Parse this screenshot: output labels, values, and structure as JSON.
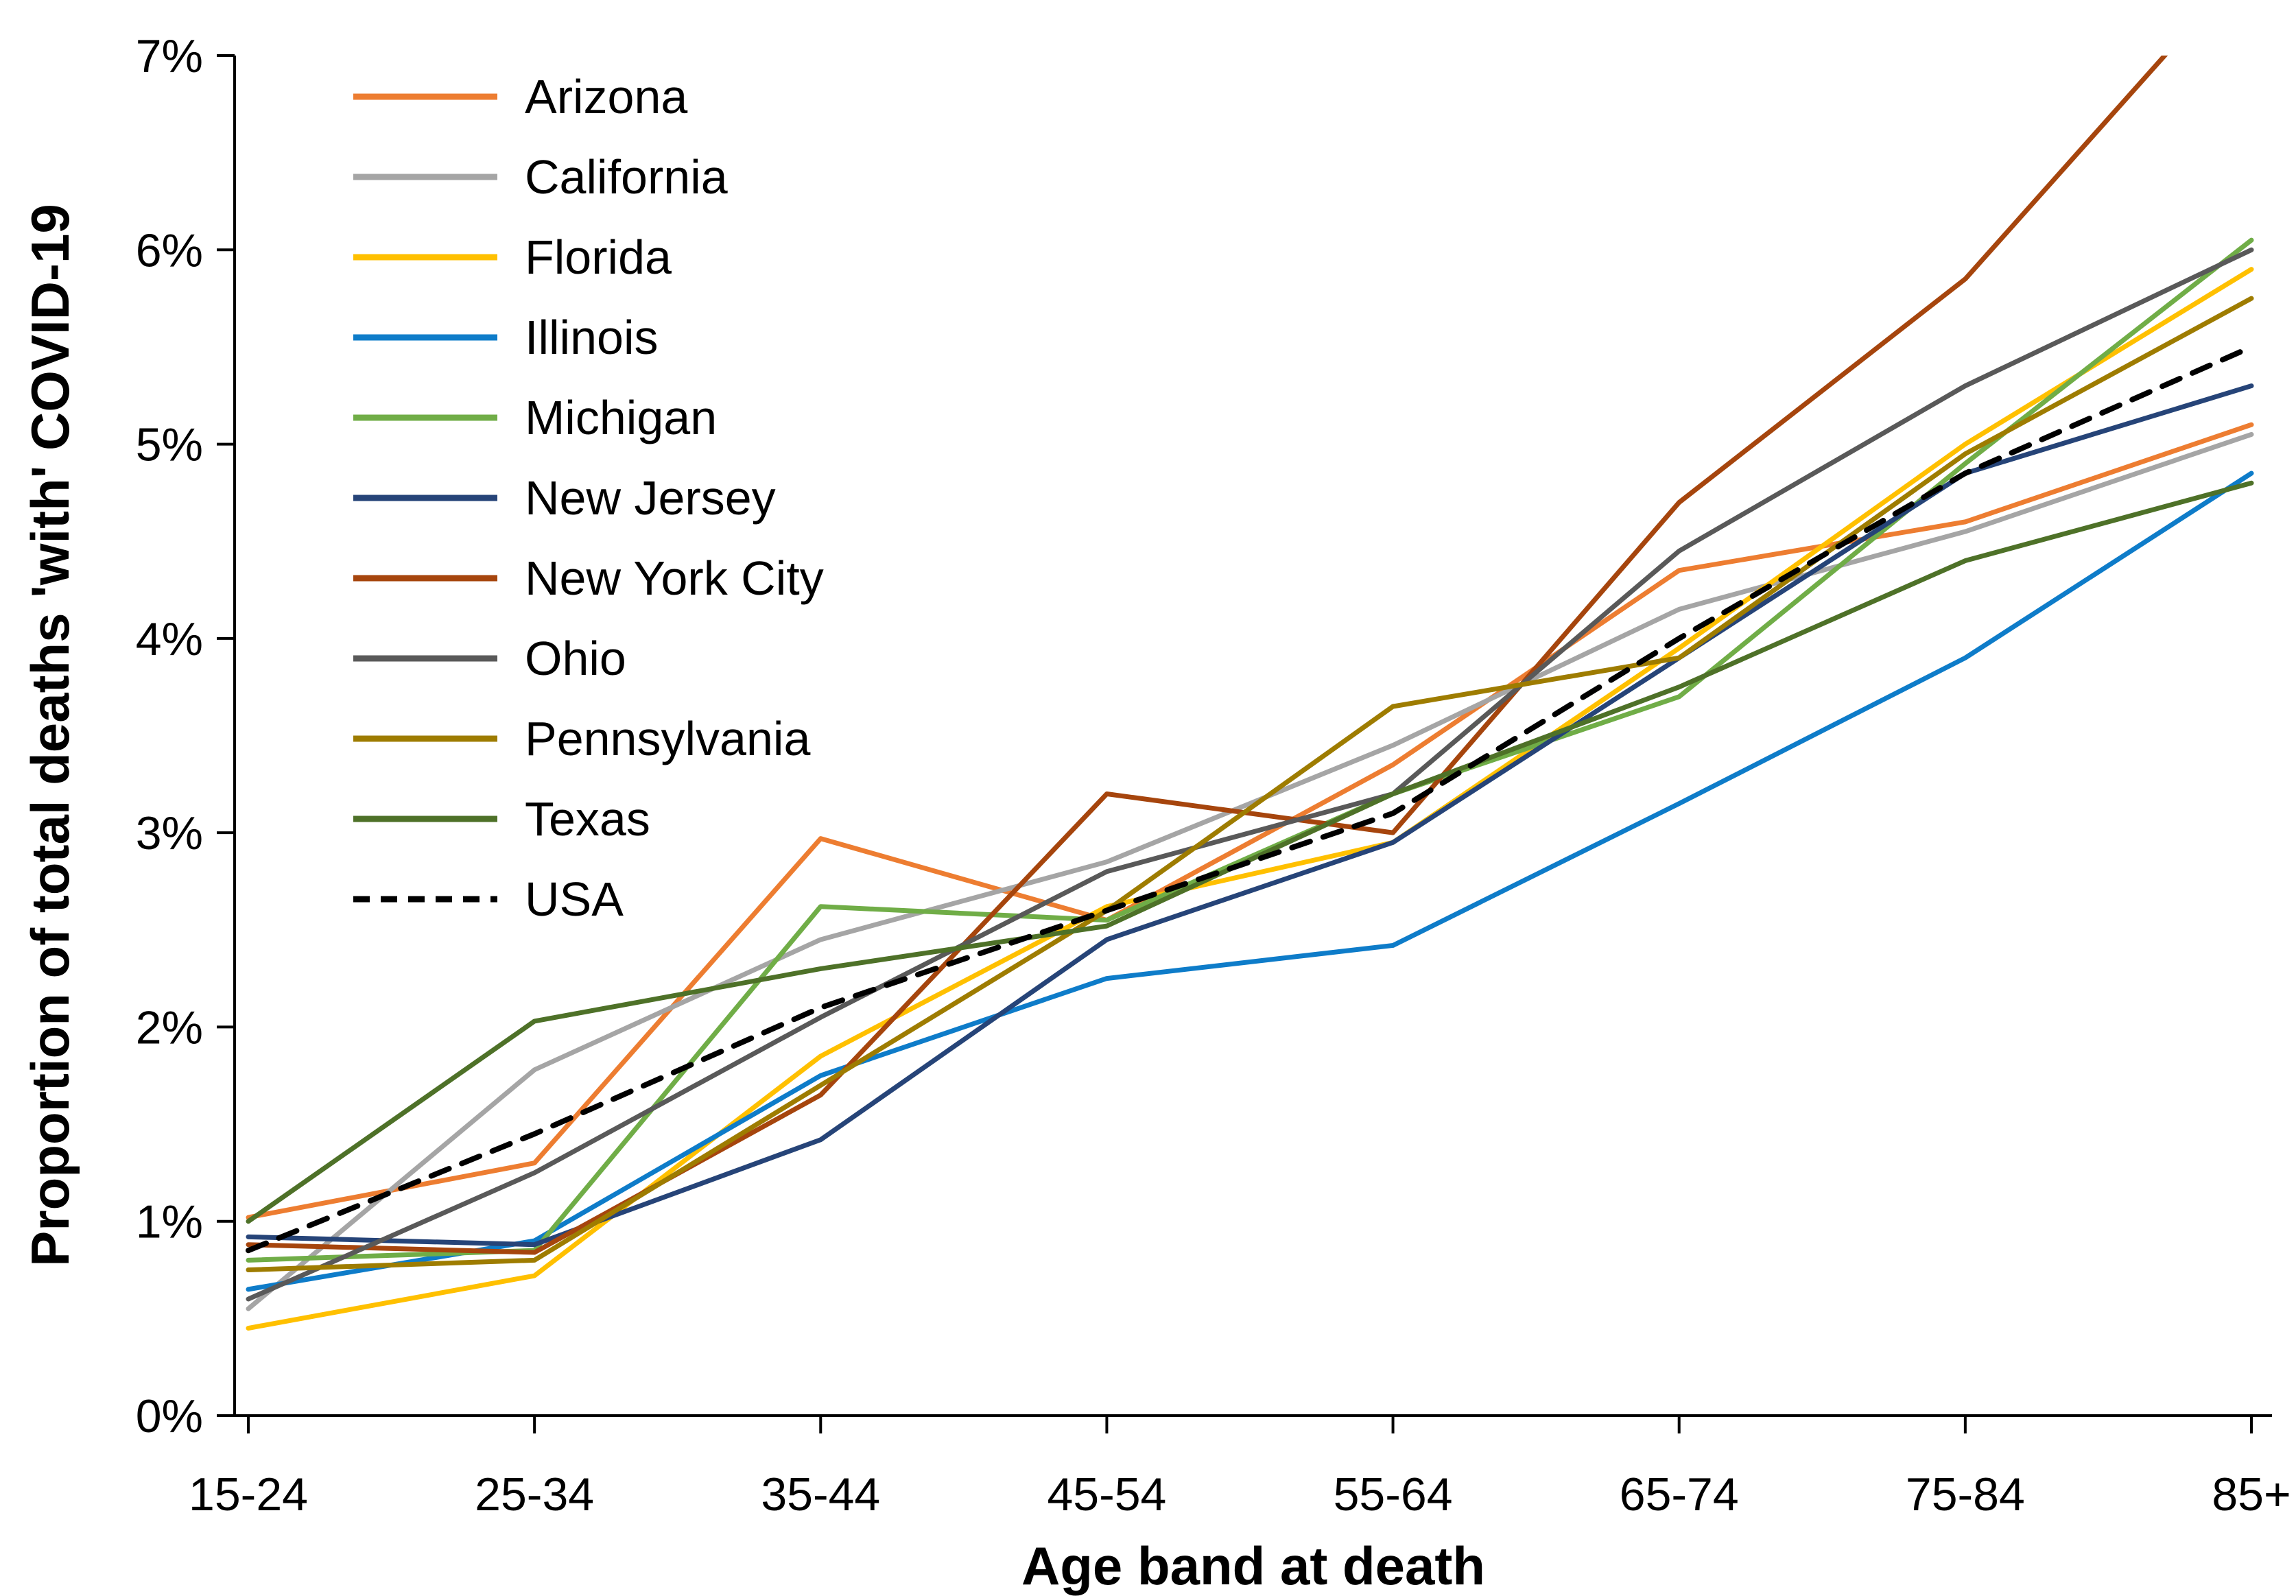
{
  "chart_data": {
    "type": "line",
    "title": "",
    "xlabel": "Age band at death",
    "ylabel": "Proportion of total deaths 'with' COVID-19",
    "categories": [
      "15-24",
      "25-34",
      "35-44",
      "45-54",
      "55-64",
      "65-74",
      "75-84",
      "85+"
    ],
    "ylim": [
      0,
      7
    ],
    "ytick_labels": [
      "0%",
      "1%",
      "2%",
      "3%",
      "4%",
      "5%",
      "6%",
      "7%"
    ],
    "grid": false,
    "legend_position": "upper-left-inside",
    "axis_color": "#000000",
    "series": [
      {
        "name": "Arizona",
        "color": "#ED7D31",
        "dashed": false,
        "values": [
          1.02,
          1.3,
          2.97,
          2.55,
          3.35,
          4.35,
          4.6,
          5.1
        ]
      },
      {
        "name": "California",
        "color": "#A5A5A5",
        "dashed": false,
        "values": [
          0.55,
          1.78,
          2.45,
          2.85,
          3.45,
          4.15,
          4.55,
          5.05
        ]
      },
      {
        "name": "Florida",
        "color": "#FFC000",
        "dashed": false,
        "values": [
          0.45,
          0.72,
          1.85,
          2.62,
          2.95,
          3.95,
          5.0,
          5.9
        ]
      },
      {
        "name": "Illinois",
        "color": "#0E7CC9",
        "dashed": false,
        "values": [
          0.65,
          0.9,
          1.75,
          2.25,
          2.42,
          3.15,
          3.9,
          4.85
        ]
      },
      {
        "name": "Michigan",
        "color": "#70AD47",
        "dashed": false,
        "values": [
          0.8,
          0.85,
          2.62,
          2.55,
          3.2,
          3.7,
          4.9,
          6.05
        ]
      },
      {
        "name": "New Jersey",
        "color": "#264478",
        "dashed": false,
        "values": [
          0.92,
          0.88,
          1.42,
          2.45,
          2.95,
          3.9,
          4.85,
          5.3
        ]
      },
      {
        "name": "New York City",
        "color": "#A6450D",
        "dashed": false,
        "values": [
          0.88,
          0.84,
          1.65,
          3.2,
          3.0,
          4.7,
          5.85,
          7.5
        ]
      },
      {
        "name": "Ohio",
        "color": "#595959",
        "dashed": false,
        "values": [
          0.6,
          1.25,
          2.05,
          2.8,
          3.2,
          4.45,
          5.3,
          6.0
        ]
      },
      {
        "name": "Pennsylvania",
        "color": "#9E7C00",
        "dashed": false,
        "values": [
          0.75,
          0.8,
          1.7,
          2.6,
          3.65,
          3.9,
          4.95,
          5.75
        ]
      },
      {
        "name": "Texas",
        "color": "#4E7128",
        "dashed": false,
        "values": [
          1.0,
          2.03,
          2.3,
          2.52,
          3.2,
          3.75,
          4.4,
          4.8
        ]
      },
      {
        "name": "USA",
        "color": "#000000",
        "dashed": true,
        "values": [
          0.85,
          1.45,
          2.1,
          2.6,
          3.1,
          4.0,
          4.85,
          5.5
        ]
      }
    ]
  }
}
